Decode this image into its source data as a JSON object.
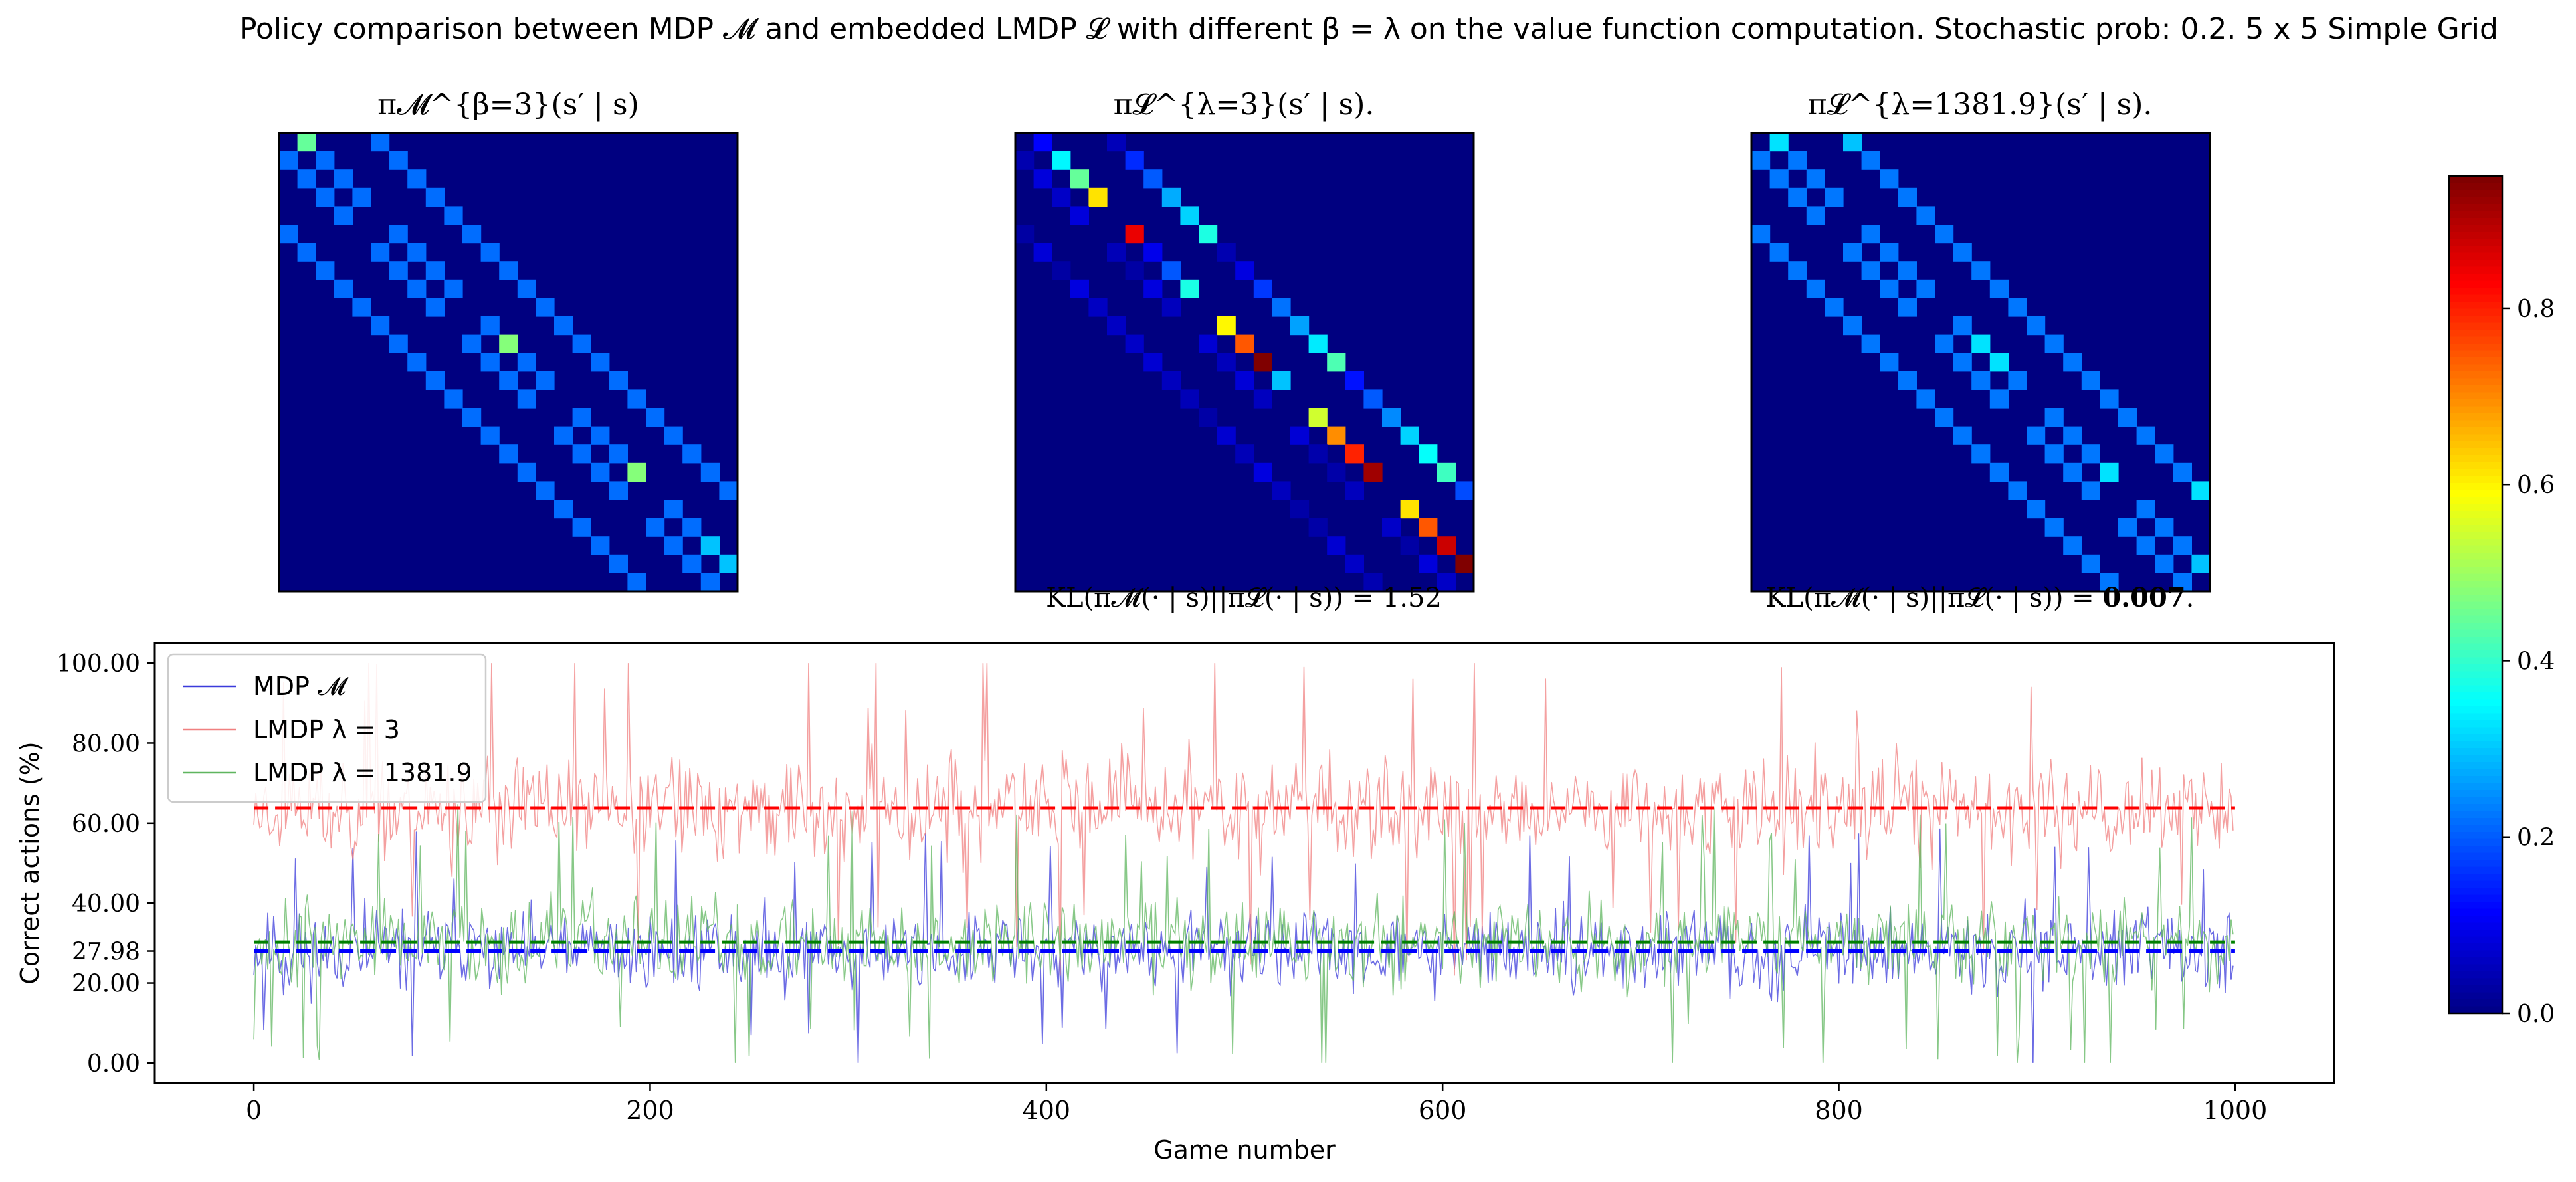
{
  "title": "Policy comparison between MDP 𝓜 and embedded LMDP 𝓛 with different β = λ on the value function computation. Stochastic prob: 0.2. 5 x 5 Simple Grid",
  "colorbar": {
    "colormap": "jet",
    "ticks": [
      "0.0",
      "0.2",
      "0.4",
      "0.6",
      "0.8"
    ],
    "range": [
      0,
      0.95
    ]
  },
  "heatmaps": [
    {
      "title": "π𝓜^{β=3}(s′ | s)",
      "caption": ""
    },
    {
      "title": "π𝓛^{λ=3}(s′ | s).",
      "caption": "KL(π𝓜(· | s)||π𝓛(· | s)) = 1.52"
    },
    {
      "title": "π𝓛^{λ=1381.9}(s′ | s).",
      "caption_prefix": "KL(π𝓜(· | s)||π𝓛(· | s)) = ",
      "caption_bold": "0.007",
      "caption_suffix": "."
    }
  ],
  "chart_data": [
    {
      "type": "heatmap",
      "title": "π𝓜^{β=3}(s′ | s)",
      "grid_size": 25,
      "description": "transition matrix 25x25 (states of 5x5 grid), values 0-0.95",
      "values": "generated: see structure — diagonal-band transition probabilities"
    },
    {
      "type": "line",
      "xlabel": "Game number",
      "ylabel": "Correct actions (%)",
      "xlim": [
        -50,
        1050
      ],
      "ylim": [
        -5,
        105
      ],
      "xticks": [
        "0",
        "200",
        "400",
        "600",
        "800",
        "1000"
      ],
      "yticks": [
        "0.00",
        "20.00",
        "27.98",
        "40.00",
        "60.00",
        "80.00",
        "100.00"
      ],
      "ytick_values": [
        0,
        20,
        27.98,
        40,
        60,
        80,
        100
      ],
      "legend": "top-left",
      "series": [
        {
          "name": "MDP 𝓜",
          "color": "#3b3bdb",
          "mean": 27.98,
          "spread": 9,
          "n": 1000
        },
        {
          "name": "LMDP λ = 3",
          "color": "#f08080",
          "mean": 63.8,
          "spread": 12,
          "n": 1000
        },
        {
          "name": "LMDP λ = 1381.9",
          "color": "#5fb55f",
          "mean": 30.2,
          "spread": 10,
          "n": 1000
        }
      ],
      "mean_lines": [
        {
          "series": "LMDP λ = 3",
          "value": 63.8,
          "color": "#ff0000"
        },
        {
          "series": "LMDP λ = 1381.9",
          "value": 30.2,
          "color": "#008000"
        },
        {
          "series": "MDP 𝓜",
          "value": 27.98,
          "color": "#0000ff"
        }
      ]
    }
  ]
}
